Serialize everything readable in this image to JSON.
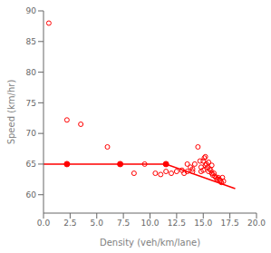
{
  "chart_data": {
    "type": "scatter",
    "xlabel": "Density (veh/km/lane)",
    "ylabel": "Speed (km/hr)",
    "xlim": [
      0,
      20
    ],
    "ylim": [
      57,
      90
    ],
    "xticks": [
      {
        "value": 0,
        "label": "0.0"
      },
      {
        "value": 2.5,
        "label": "2.5"
      },
      {
        "value": 5,
        "label": "5.0"
      },
      {
        "value": 7.5,
        "label": "7.5"
      },
      {
        "value": 10,
        "label": "10.0"
      },
      {
        "value": 12.5,
        "label": "12.5"
      },
      {
        "value": 15,
        "label": "15.0"
      },
      {
        "value": 17.5,
        "label": "17.5"
      },
      {
        "value": 20,
        "label": "20.0"
      }
    ],
    "yticks": [
      60,
      65,
      70,
      75,
      80,
      85,
      90
    ],
    "series": [
      {
        "type": "scatter",
        "color": "#FF0000",
        "marker": "open_circle",
        "x": [
          0.5,
          2.2,
          3.5,
          6.0,
          8.5,
          9.5,
          10.5,
          11.0,
          11.5,
          12.0,
          12.5,
          13.0,
          13.2,
          13.5,
          14.0,
          14.2,
          14.5,
          14.7,
          14.8,
          15.0,
          15.1,
          15.2,
          15.3,
          15.4,
          15.5,
          15.6,
          15.7,
          15.8,
          15.9,
          16.0,
          16.1,
          16.2,
          16.3,
          16.4,
          16.5,
          16.6,
          16.7,
          16.8,
          16.9,
          15.5,
          15.0,
          14.8,
          13.8,
          13.5,
          15.2,
          14.0,
          15.8
        ],
        "values": [
          88,
          72.2,
          71.5,
          67.8,
          63.5,
          65.0,
          63.5,
          63.3,
          63.8,
          63.5,
          63.8,
          64.0,
          63.5,
          63.8,
          64.2,
          65.0,
          67.8,
          65.5,
          64.5,
          65.5,
          66.0,
          64.8,
          65.0,
          64.5,
          63.8,
          64.2,
          64.0,
          63.5,
          63.2,
          63.5,
          63.0,
          62.8,
          62.5,
          62.8,
          62.5,
          62.3,
          62.0,
          62.8,
          62.2,
          65.3,
          64.0,
          63.8,
          64.5,
          65.0,
          66.2,
          63.8,
          64.8
        ]
      },
      {
        "type": "line",
        "color": "#FF0000",
        "x": [
          0.0,
          2.2,
          7.2,
          11.5,
          18.0
        ],
        "values": [
          65.0,
          65.0,
          65.0,
          65.0,
          61.0
        ]
      },
      {
        "type": "scatter",
        "color": "#FF0000",
        "marker": "circle",
        "x": [
          2.2,
          7.2,
          11.5
        ],
        "values": [
          65.0,
          65.0,
          65.0
        ]
      }
    ]
  }
}
